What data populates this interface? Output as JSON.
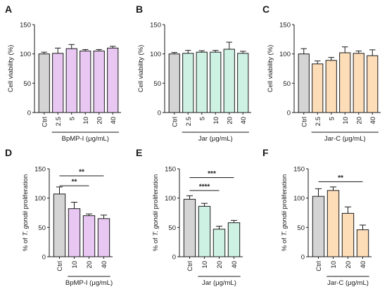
{
  "colors": {
    "ctrl": "#d4d4d4",
    "bpmp": "#e8c7f2",
    "jar": "#cdf2e3",
    "jarc": "#fdddb8",
    "axis": "#1a1a1a"
  },
  "chart_data": [
    {
      "panel": "A",
      "type": "bar",
      "ylabel": "Cell viability (%)",
      "ylim": [
        0,
        150
      ],
      "yticks": [
        "0",
        "50",
        "100",
        "150"
      ],
      "categories": [
        "Ctrl",
        "2.5",
        "5",
        "10",
        "20",
        "40"
      ],
      "values": [
        100,
        101,
        109,
        105,
        105,
        110
      ],
      "errors": [
        3,
        9,
        7,
        2.5,
        2.5,
        3
      ],
      "group_label": "BpMP-I (μg/mL)",
      "group_color": "bpmp",
      "significance": []
    },
    {
      "panel": "B",
      "type": "bar",
      "ylabel": "Cell viability (%)",
      "ylim": [
        0,
        150
      ],
      "yticks": [
        "0",
        "50",
        "100",
        "150"
      ],
      "categories": [
        "Ctrl",
        "2.5",
        "5",
        "10",
        "20",
        "40"
      ],
      "values": [
        100,
        101,
        103,
        103,
        108,
        101
      ],
      "errors": [
        2.5,
        5,
        2.5,
        3,
        12,
        3.5
      ],
      "group_label": "Jar (μg/mL)",
      "group_color": "jar",
      "significance": []
    },
    {
      "panel": "C",
      "type": "bar",
      "ylabel": "Cell viability (%)",
      "ylim": [
        0,
        150
      ],
      "yticks": [
        "0",
        "50",
        "100",
        "150"
      ],
      "categories": [
        "Ctrl",
        "2.5",
        "5",
        "10",
        "20",
        "40"
      ],
      "values": [
        100,
        83,
        89,
        102,
        101,
        97
      ],
      "errors": [
        9,
        5,
        5,
        10,
        4,
        10
      ],
      "group_label": "Jar-C (μg/mL)",
      "group_color": "jarc",
      "significance": []
    },
    {
      "panel": "D",
      "type": "bar",
      "ylabel": "% of T. gondii proliferation",
      "ylim": [
        0,
        150
      ],
      "yticks": [
        "0",
        "50",
        "100",
        "150"
      ],
      "categories": [
        "Ctrl",
        "10",
        "20",
        "40"
      ],
      "values": [
        107,
        82,
        70,
        65
      ],
      "errors": [
        12,
        11,
        3,
        6
      ],
      "group_label": "BpMP-I (μg/mL)",
      "group_color": "bpmp",
      "significance": [
        {
          "from": 0,
          "to": 3,
          "label": "**",
          "y": 138
        },
        {
          "from": 0,
          "to": 2,
          "label": "**",
          "y": 121
        }
      ]
    },
    {
      "panel": "E",
      "type": "bar",
      "ylabel": "% of T. gondii proliferation",
      "ylim": [
        0,
        150
      ],
      "yticks": [
        "0",
        "50",
        "100",
        "150"
      ],
      "categories": [
        "Ctrl",
        "10",
        "20",
        "40"
      ],
      "values": [
        98,
        86,
        47,
        58
      ],
      "errors": [
        6,
        5,
        5,
        4
      ],
      "group_label": "Jar (μg/mL)",
      "group_color": "jar",
      "significance": [
        {
          "from": 0,
          "to": 3,
          "label": "***",
          "y": 135
        },
        {
          "from": 0,
          "to": 2,
          "label": "****",
          "y": 113
        }
      ]
    },
    {
      "panel": "F",
      "type": "bar",
      "ylabel": "% of T. gondii proliferation",
      "ylim": [
        0,
        150
      ],
      "yticks": [
        "0",
        "50",
        "100",
        "150"
      ],
      "categories": [
        "Ctrl",
        "10",
        "20",
        "40"
      ],
      "values": [
        103,
        113,
        74,
        46
      ],
      "errors": [
        13,
        6,
        11,
        8
      ],
      "group_label": "Jar-C (μg/mL)",
      "group_color": "jarc",
      "significance": [
        {
          "from": 0,
          "to": 3,
          "label": "**",
          "y": 128
        }
      ]
    }
  ]
}
